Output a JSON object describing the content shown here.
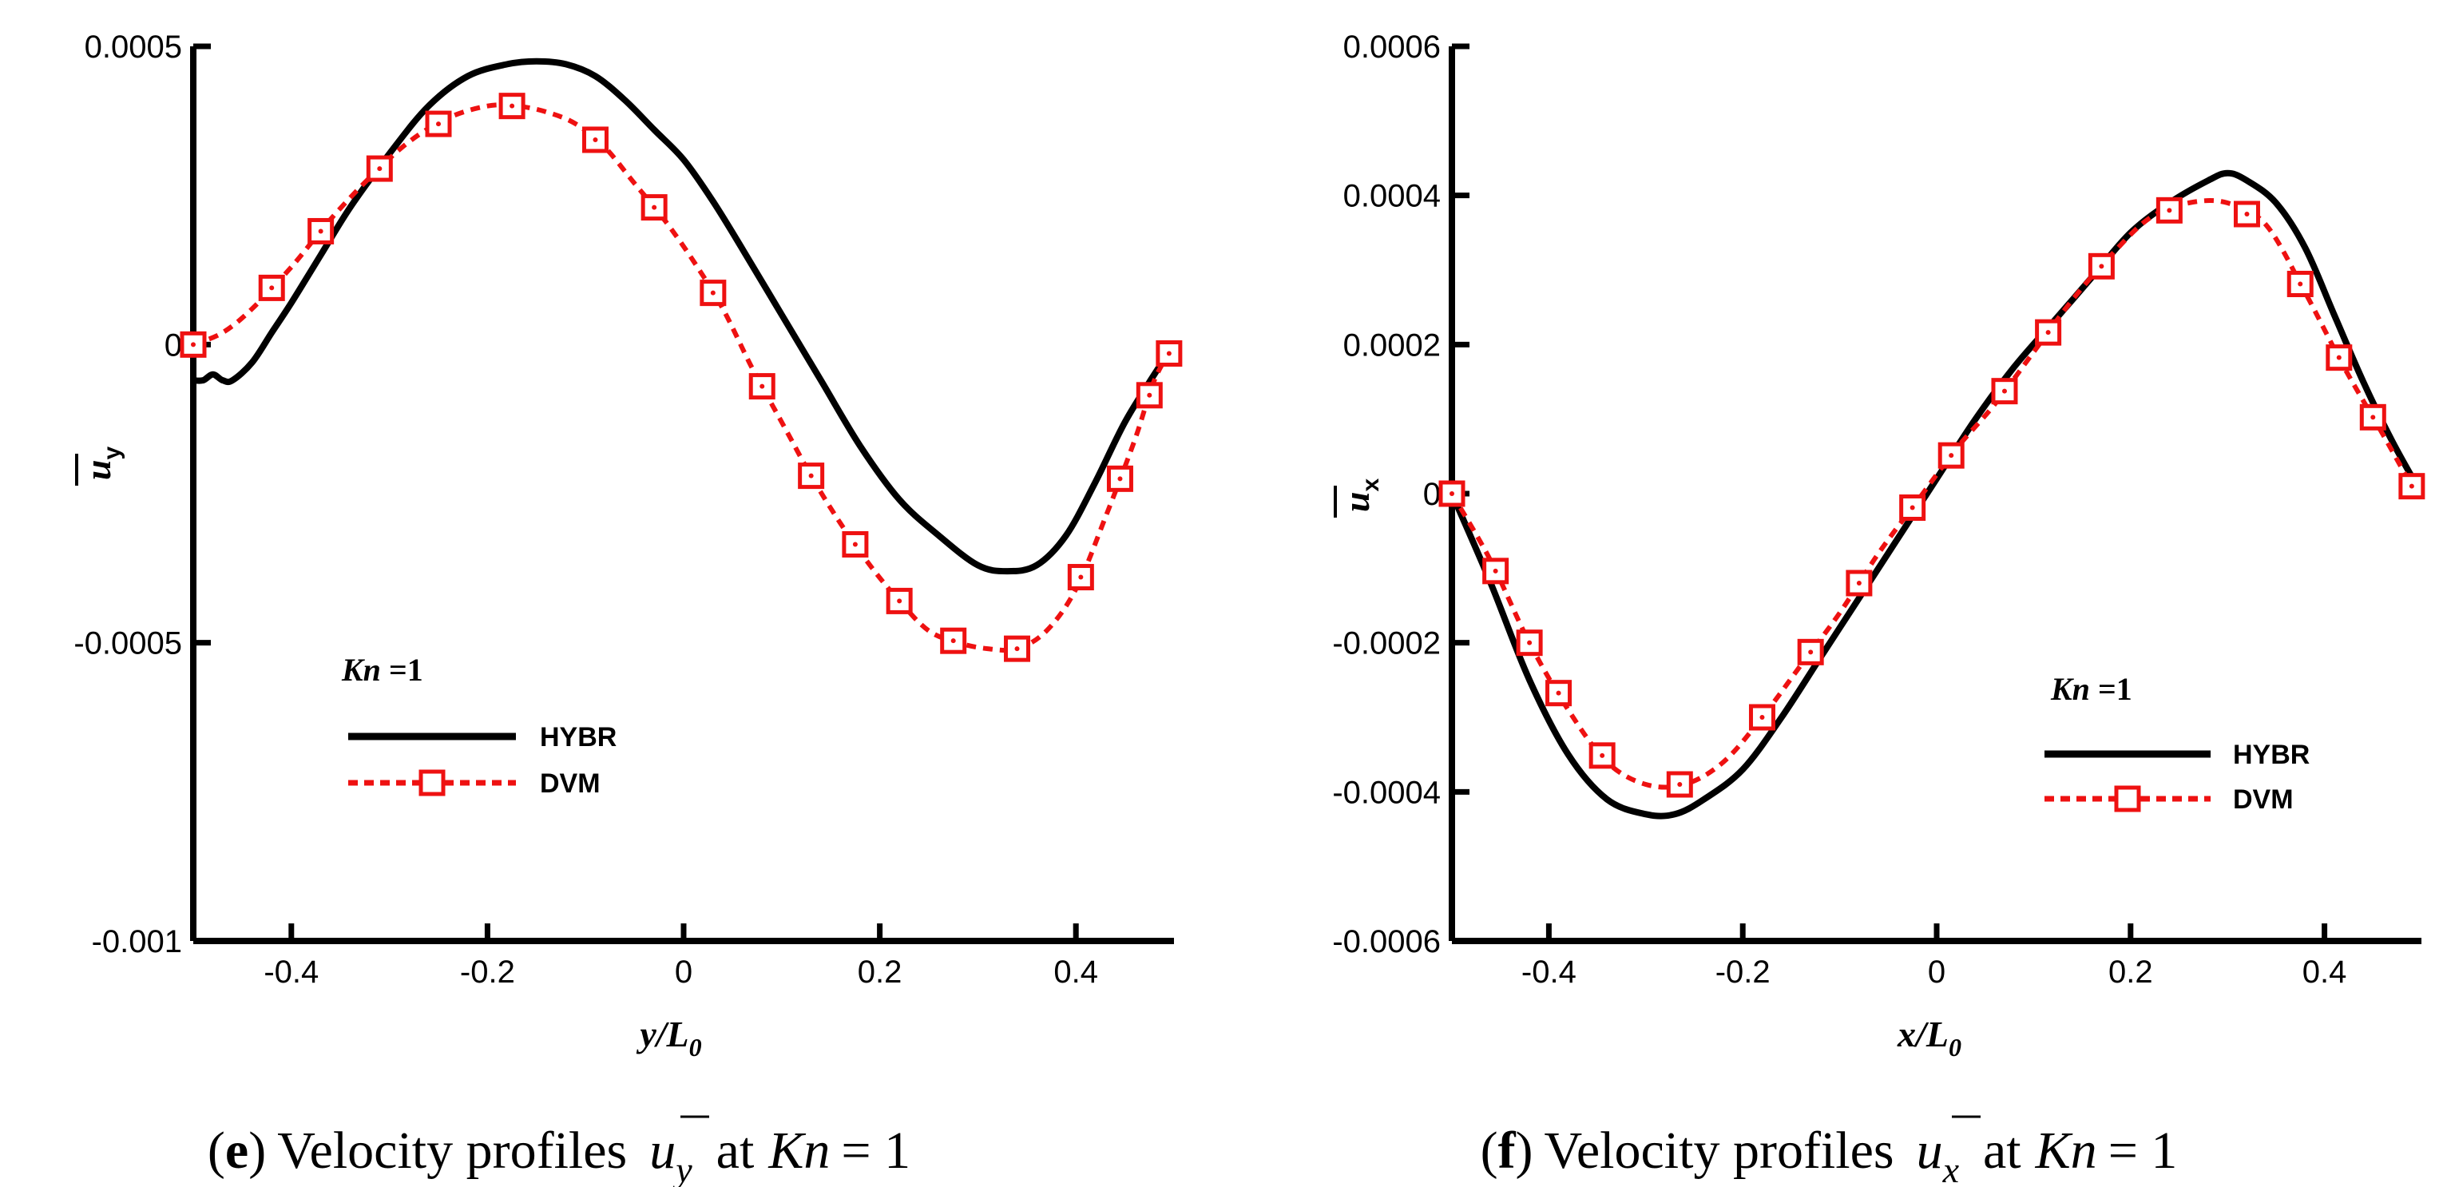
{
  "colors": {
    "hybr": "#000000",
    "dvm": "#ee1111"
  },
  "chart_data": [
    {
      "type": "line",
      "panel_letter": "e",
      "caption": {
        "open": "(",
        "letter": "e",
        "close": ")",
        "text": "Velocity profiles",
        "sym": "u",
        "sub": "y",
        "at": "at",
        "kn": "Kn",
        "eq": "= 1"
      },
      "xlabel": {
        "a": "y/L",
        "sub": "0"
      },
      "ylabel": {
        "u": "u",
        "sub": "y"
      },
      "xlim": [
        -0.5,
        0.5
      ],
      "ylim": [
        -0.001,
        0.0005
      ],
      "xticks": [
        -0.4,
        -0.2,
        0,
        0.2,
        0.4
      ],
      "xtick_labels": [
        "-0.4",
        "-0.2",
        "0",
        "0.2",
        "0.4"
      ],
      "yticks": [
        -0.001,
        -0.0005,
        0,
        0.0005
      ],
      "ytick_labels": [
        "-0.001",
        "-0.0005",
        "0",
        "0.0005"
      ],
      "legend_title": {
        "a": "Kn",
        "b": " =1"
      },
      "series": [
        {
          "name": "HYBR",
          "style": "solid",
          "x": [
            -0.5,
            -0.49,
            -0.48,
            -0.47,
            -0.46,
            -0.44,
            -0.42,
            -0.4,
            -0.37,
            -0.34,
            -0.3,
            -0.26,
            -0.22,
            -0.18,
            -0.15,
            -0.12,
            -0.09,
            -0.06,
            -0.03,
            0.0,
            0.03,
            0.06,
            0.1,
            0.14,
            0.18,
            0.22,
            0.26,
            0.3,
            0.33,
            0.36,
            0.39,
            0.42,
            0.45,
            0.48,
            0.5
          ],
          "y": [
            -6e-05,
            -6e-05,
            -5e-05,
            -6e-05,
            -6e-05,
            -3e-05,
            2e-05,
            7e-05,
            0.00015,
            0.00023,
            0.00032,
            0.0004,
            0.00045,
            0.00047,
            0.000475,
            0.00047,
            0.00045,
            0.00041,
            0.00036,
            0.00031,
            0.00024,
            0.00016,
            5e-05,
            -6e-05,
            -0.00017,
            -0.00026,
            -0.00032,
            -0.00037,
            -0.00038,
            -0.00037,
            -0.00032,
            -0.00023,
            -0.00013,
            -5e-05,
            0.0
          ]
        },
        {
          "name": "DVM",
          "style": "dashed-square",
          "x": [
            -0.5,
            -0.47,
            -0.44,
            -0.4,
            -0.36,
            -0.32,
            -0.28,
            -0.24,
            -0.2,
            -0.17,
            -0.14,
            -0.11,
            -0.08,
            -0.05,
            -0.02,
            0.01,
            0.04,
            0.07,
            0.1,
            0.13,
            0.16,
            0.19,
            0.22,
            0.25,
            0.28,
            0.31,
            0.34,
            0.37,
            0.4,
            0.43,
            0.46,
            0.48,
            0.5
          ],
          "y": [
            0.0,
            2e-05,
            6e-05,
            0.00013,
            0.00021,
            0.00028,
            0.00034,
            0.00038,
            0.0004,
            0.0004,
            0.00039,
            0.00037,
            0.00033,
            0.00027,
            0.00021,
            0.00014,
            6e-05,
            -4e-05,
            -0.00013,
            -0.00022,
            -0.0003,
            -0.00037,
            -0.00043,
            -0.00048,
            -0.0005,
            -0.00051,
            -0.00051,
            -0.00048,
            -0.00041,
            -0.00029,
            -0.00016,
            -6e-05,
            0.0
          ]
        }
      ],
      "markers_x": [
        -0.5,
        -0.42,
        -0.37,
        -0.31,
        -0.25,
        -0.175,
        -0.09,
        -0.03,
        0.03,
        0.08,
        0.13,
        0.175,
        0.22,
        0.275,
        0.34,
        0.405,
        0.445,
        0.475,
        0.495
      ]
    },
    {
      "type": "line",
      "panel_letter": "f",
      "caption": {
        "open": "(",
        "letter": "f",
        "close": ")",
        "text": "Velocity profiles",
        "sym": "u",
        "sub": "x",
        "at": "at",
        "kn": "Kn",
        "eq": "= 1"
      },
      "xlabel": {
        "a": "x/L",
        "sub": "0"
      },
      "ylabel": {
        "u": "u",
        "sub": "x"
      },
      "xlim": [
        -0.5,
        0.5
      ],
      "ylim": [
        -0.0006,
        0.0006
      ],
      "xticks": [
        -0.4,
        -0.2,
        0,
        0.2,
        0.4
      ],
      "xtick_labels": [
        "-0.4",
        "-0.2",
        "0",
        "0.2",
        "0.4"
      ],
      "yticks": [
        -0.0006,
        -0.0004,
        -0.0002,
        0,
        0.0002,
        0.0004,
        0.0006
      ],
      "ytick_labels": [
        "-0.0006",
        "-0.0004",
        "-0.0002",
        "0",
        "0.0002",
        "0.0004",
        "0.0006"
      ],
      "legend_title": {
        "a": "Kn",
        "b": " =1"
      },
      "series": [
        {
          "name": "HYBR",
          "style": "solid",
          "x": [
            -0.5,
            -0.46,
            -0.42,
            -0.38,
            -0.34,
            -0.3,
            -0.27,
            -0.24,
            -0.2,
            -0.16,
            -0.12,
            -0.08,
            -0.04,
            0.0,
            0.04,
            0.08,
            0.12,
            0.16,
            0.2,
            0.24,
            0.28,
            0.3,
            0.32,
            0.35,
            0.38,
            0.41,
            0.44,
            0.47,
            0.5
          ],
          "y": [
            0.0,
            -0.00012,
            -0.00025,
            -0.00035,
            -0.00041,
            -0.00043,
            -0.00043,
            -0.00041,
            -0.00037,
            -0.0003,
            -0.00022,
            -0.00014,
            -6e-05,
            2e-05,
            0.0001,
            0.00017,
            0.00023,
            0.00029,
            0.00035,
            0.00039,
            0.00042,
            0.00043,
            0.00042,
            0.00039,
            0.00033,
            0.00024,
            0.00015,
            7e-05,
            0.0
          ]
        },
        {
          "name": "DVM",
          "style": "dashed-square",
          "x": [
            -0.5,
            -0.46,
            -0.42,
            -0.38,
            -0.34,
            -0.3,
            -0.26,
            -0.22,
            -0.18,
            -0.14,
            -0.1,
            -0.06,
            -0.02,
            0.02,
            0.06,
            0.1,
            0.14,
            0.18,
            0.22,
            0.26,
            0.3,
            0.34,
            0.38,
            0.42,
            0.46,
            0.49
          ],
          "y": [
            0.0,
            -9e-05,
            -0.0002,
            -0.00029,
            -0.00036,
            -0.00039,
            -0.00039,
            -0.00036,
            -0.0003,
            -0.00023,
            -0.00016,
            -8e-05,
            -1e-05,
            6e-05,
            0.00012,
            0.00019,
            0.00026,
            0.00032,
            0.00037,
            0.00039,
            0.00039,
            0.00036,
            0.00027,
            0.00017,
            8e-05,
            1e-05
          ]
        }
      ],
      "markers_x": [
        -0.5,
        -0.455,
        -0.42,
        -0.39,
        -0.345,
        -0.265,
        -0.18,
        -0.13,
        -0.08,
        -0.025,
        0.015,
        0.07,
        0.115,
        0.17,
        0.24,
        0.32,
        0.375,
        0.415,
        0.45,
        0.49
      ]
    }
  ]
}
